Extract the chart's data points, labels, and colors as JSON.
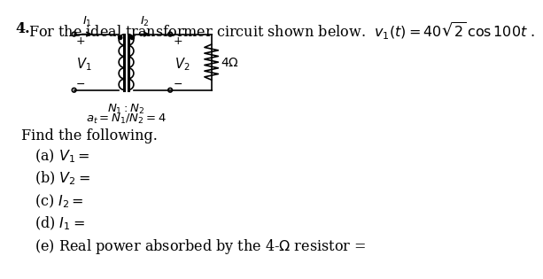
{
  "background_color": "#ffffff",
  "problem_number": "4.",
  "title_text": "  For the ideal transformer circuit shown below.  $v_1(t) = 40\\sqrt{2}\\,\\cos 100t$ .",
  "find_text": "Find the following.",
  "parts": [
    "(a) $V_1 =$",
    "(b) $V_2 =$",
    "(c) $I_2 =$",
    "(d) $I_1 =$",
    "(e) Real power absorbed by the 4-$\\Omega$ resistor ="
  ]
}
